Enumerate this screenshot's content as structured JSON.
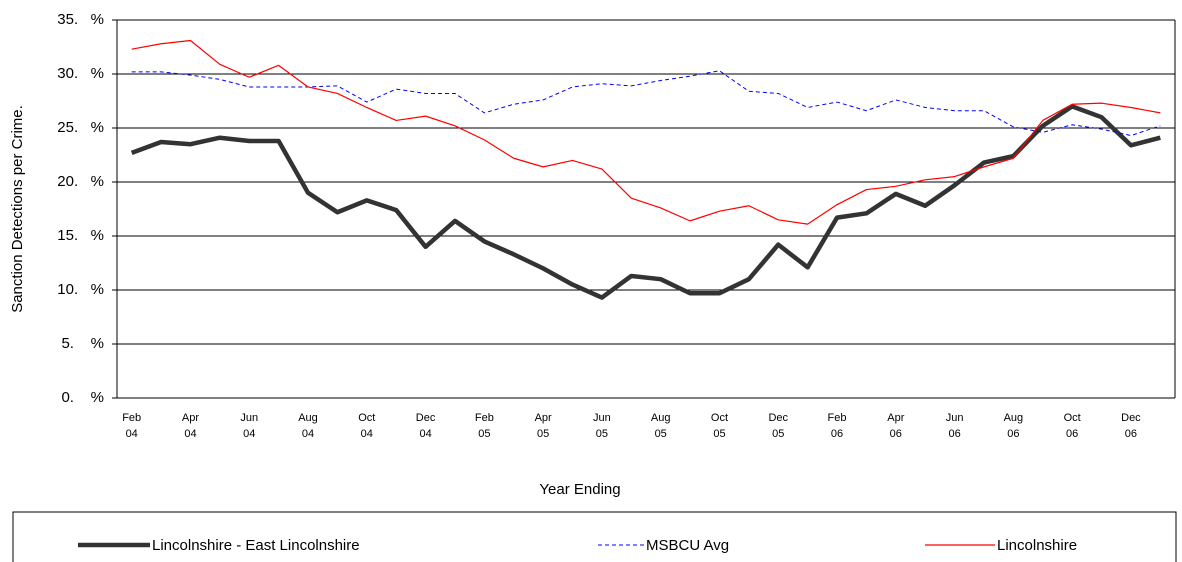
{
  "chart_data": {
    "type": "line",
    "x_label": "Year Ending",
    "y_label": "Sanction Detections per Crime.",
    "categories": [
      "Feb 04",
      null,
      "Apr 04",
      null,
      "Jun 04",
      null,
      "Aug 04",
      null,
      "Oct 04",
      null,
      "Dec 04",
      null,
      "Feb 05",
      null,
      "Apr 05",
      null,
      "Jun 05",
      null,
      "Aug 05",
      null,
      "Oct 05",
      null,
      "Dec 05",
      null,
      "Feb 06",
      null,
      "Apr 06",
      null,
      "Jun 06",
      null,
      "Aug 06",
      null,
      "Oct 06",
      null,
      "Dec 06",
      null
    ],
    "series": [
      {
        "name": "Lincolnshire - East Lincolnshire",
        "color": "#333333",
        "linewidth": 4.5,
        "dash": "solid",
        "values": [
          22.7,
          23.7,
          23.5,
          24.1,
          23.8,
          23.8,
          19.0,
          17.2,
          18.3,
          17.4,
          14.0,
          16.4,
          14.5,
          13.3,
          12.0,
          10.5,
          9.3,
          11.3,
          11.0,
          9.7,
          9.7,
          11.0,
          14.2,
          12.1,
          16.7,
          17.1,
          18.9,
          17.8,
          19.7,
          21.8,
          22.4,
          25.2,
          27.0,
          26.0,
          23.4,
          24.1
        ]
      },
      {
        "name": "MSBCU Avg",
        "color": "#0000ff",
        "linewidth": 1,
        "dash": "dashed",
        "values": [
          30.2,
          30.2,
          29.9,
          29.5,
          28.8,
          28.8,
          28.8,
          28.9,
          27.4,
          28.6,
          28.2,
          28.2,
          26.4,
          27.2,
          27.6,
          28.8,
          29.1,
          28.9,
          29.4,
          29.8,
          30.3,
          28.4,
          28.2,
          26.9,
          27.4,
          26.6,
          27.6,
          26.9,
          26.6,
          26.6,
          25.1,
          24.6,
          25.3,
          24.9,
          24.3,
          25.2
        ]
      },
      {
        "name": "Lincolnshire",
        "color": "#ff0000",
        "linewidth": 1.2,
        "dash": "solid",
        "values": [
          32.3,
          32.8,
          33.1,
          30.9,
          29.7,
          30.8,
          28.8,
          28.2,
          26.9,
          25.7,
          26.1,
          25.2,
          23.9,
          22.2,
          21.4,
          22.0,
          21.2,
          18.5,
          17.6,
          16.4,
          17.3,
          17.8,
          16.5,
          16.1,
          17.9,
          19.3,
          19.6,
          20.2,
          20.5,
          21.4,
          22.2,
          25.7,
          27.2,
          27.3,
          26.9,
          26.4
        ]
      }
    ],
    "ylim": [
      0,
      35
    ],
    "yticks": [
      {
        "value": 0,
        "label": "0.    %"
      },
      {
        "value": 5,
        "label": "5.    %"
      },
      {
        "value": 10,
        "label": "10.   %"
      },
      {
        "value": 15,
        "label": "15.   %"
      },
      {
        "value": 20,
        "label": "20.   %"
      },
      {
        "value": 25,
        "label": "25.   %"
      },
      {
        "value": 30,
        "label": "30.   %"
      },
      {
        "value": 35,
        "label": "35.   %"
      }
    ],
    "grid": true,
    "legend": "bottom"
  }
}
